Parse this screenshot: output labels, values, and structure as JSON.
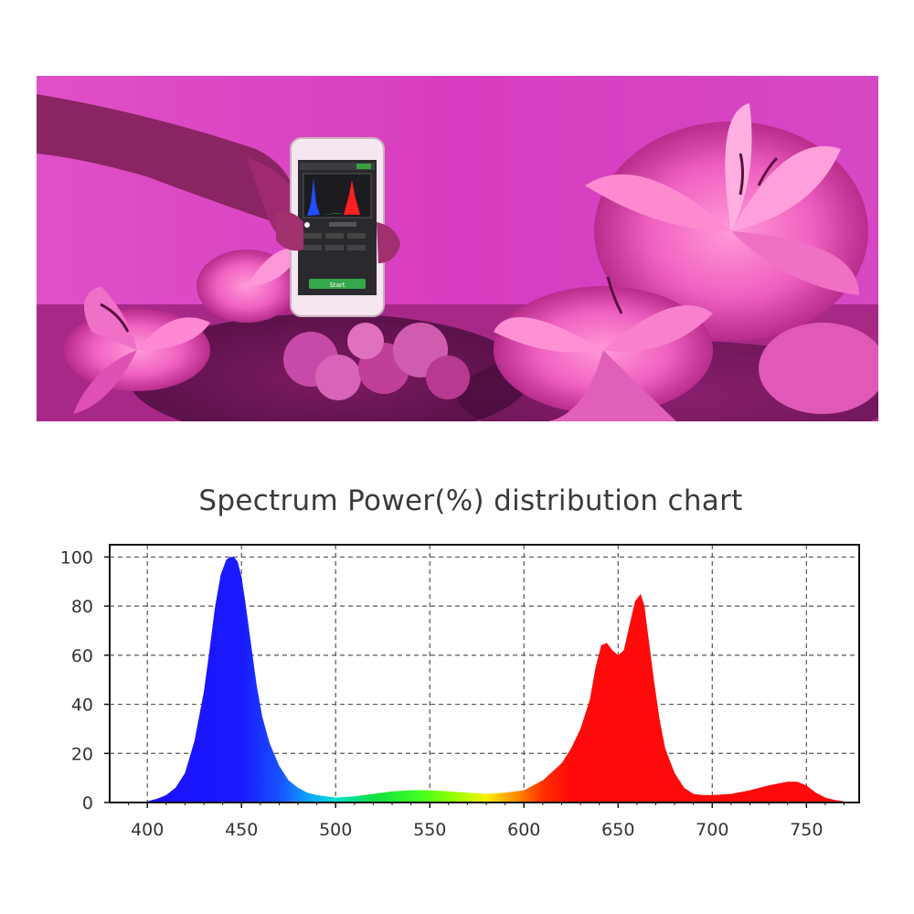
{
  "photo": {
    "phone_button_label": "Start"
  },
  "chart_data": {
    "type": "area",
    "title": "Spectrum Power(%) distribution chart",
    "xlabel": "",
    "ylabel": "",
    "xlim": [
      380,
      778
    ],
    "ylim": [
      0,
      105
    ],
    "x_ticks": [
      400,
      450,
      500,
      550,
      600,
      650,
      700,
      750
    ],
    "x_tick_labels": [
      "400",
      "450",
      "500",
      "550",
      "600",
      "650",
      "700",
      "750"
    ],
    "y_ticks": [
      0,
      20,
      40,
      60,
      80,
      100
    ],
    "y_tick_labels": [
      "0",
      "20",
      "40",
      "60",
      "80",
      "100"
    ],
    "grid": true,
    "grid_style": "dashed",
    "fill": "wavelength-colored spectrum",
    "series": [
      {
        "x": [
          400,
          405,
          410,
          415,
          420,
          425,
          430,
          433,
          436,
          439,
          442,
          444,
          446,
          448,
          450,
          452,
          455,
          458,
          461,
          465,
          470,
          475,
          480,
          485,
          490,
          495,
          500,
          510,
          520,
          530,
          540,
          550,
          560,
          570,
          580,
          590,
          600,
          610,
          620,
          625,
          630,
          635,
          638,
          641,
          644,
          647,
          650,
          653,
          656,
          659,
          662,
          664,
          666,
          669,
          672,
          675,
          680,
          685,
          690,
          695,
          700,
          710,
          720,
          730,
          740,
          745,
          750,
          755,
          760,
          765,
          770
        ],
        "values": [
          0.5,
          1.5,
          3,
          6,
          12,
          25,
          45,
          62,
          80,
          93,
          99,
          100,
          100,
          98,
          92,
          82,
          65,
          48,
          35,
          24,
          15,
          9,
          6,
          4,
          3,
          2.5,
          2,
          2.5,
          3.5,
          4.5,
          5,
          5,
          4.5,
          4,
          3.5,
          4,
          5,
          9,
          16,
          22,
          30,
          42,
          55,
          64,
          65,
          62,
          60,
          62,
          72,
          82,
          85,
          80,
          68,
          50,
          34,
          22,
          12,
          6,
          3.5,
          3,
          3,
          3.5,
          5,
          7,
          8.5,
          8.5,
          7,
          4,
          2,
          1,
          0.5
        ]
      }
    ]
  }
}
